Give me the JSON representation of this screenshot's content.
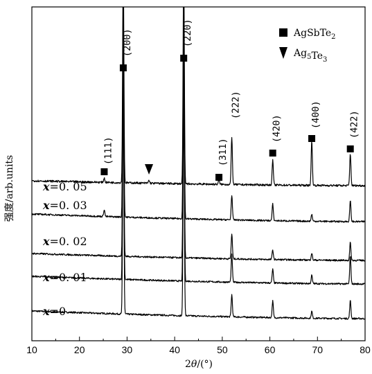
{
  "chart_data": {
    "type": "line",
    "xlabel_prefix": "2",
    "xlabel_theta": "θ",
    "xlabel_suffix": "/(°)",
    "ylabel": "强度/arb.units",
    "xlim": [
      10,
      80
    ],
    "x_ticks": [
      10,
      20,
      30,
      40,
      50,
      60,
      70,
      80
    ],
    "y_ticks_shown": false,
    "legend": {
      "position": "top-right",
      "entries": [
        {
          "marker": "square",
          "base": "AgSbTe",
          "sub": "2",
          "mid": "",
          "sub2": ""
        },
        {
          "marker": "triangle-down",
          "base": "Ag",
          "sub": "5",
          "mid": "Te",
          "sub2": "3"
        }
      ]
    },
    "series": [
      {
        "name": "x=0",
        "var": "x",
        "eq": "=",
        "val": "0",
        "baseline_start": 0.55,
        "baseline_end": 0.0,
        "peaks": [
          [
            29.2,
            16
          ],
          [
            41.9,
            16
          ],
          [
            52.0,
            1.6
          ],
          [
            60.6,
            1.2
          ],
          [
            68.8,
            0.5
          ],
          [
            76.9,
            1.3
          ]
        ]
      },
      {
        "name": "x=0.01",
        "var": "x",
        "eq": "=",
        "val": "0. 01",
        "baseline_start": 0.55,
        "baseline_end": 0.0,
        "peaks": [
          [
            29.2,
            16
          ],
          [
            41.9,
            16
          ],
          [
            52.0,
            2.0
          ],
          [
            60.6,
            1.0
          ],
          [
            68.8,
            0.6
          ],
          [
            76.9,
            2.0
          ]
        ]
      },
      {
        "name": "x=0.02",
        "var": "x",
        "eq": "=",
        "val": "0. 02",
        "baseline_start": 0.5,
        "baseline_end": 0.0,
        "peaks": [
          [
            29.2,
            16
          ],
          [
            41.9,
            16
          ],
          [
            52.0,
            1.8
          ],
          [
            60.6,
            0.7
          ],
          [
            68.8,
            0.5
          ],
          [
            76.9,
            1.3
          ]
        ]
      },
      {
        "name": "x=0.03",
        "var": "x",
        "eq": "=",
        "val": "0. 03",
        "baseline_start": 0.55,
        "baseline_end": 0.0,
        "peaks": [
          [
            25.2,
            0.5
          ],
          [
            29.2,
            16
          ],
          [
            41.9,
            16
          ],
          [
            52.0,
            1.8
          ],
          [
            60.6,
            1.2
          ],
          [
            68.8,
            0.5
          ],
          [
            76.9,
            1.5
          ]
        ]
      },
      {
        "name": "x=0.05",
        "var": "x",
        "eq": "=",
        "val": "0. 05",
        "baseline_start": 0.35,
        "baseline_end": 0.0,
        "peaks": [
          [
            25.2,
            0.3
          ],
          [
            29.2,
            16
          ],
          [
            34.6,
            0.2
          ],
          [
            41.9,
            16
          ],
          [
            49.3,
            0.3
          ],
          [
            52.0,
            3.4
          ],
          [
            60.6,
            1.8
          ],
          [
            68.8,
            3.2
          ],
          [
            76.9,
            2.3
          ]
        ]
      }
    ],
    "peak_annotations": [
      {
        "label": "(111)",
        "x": 25.2,
        "marker": "square"
      },
      {
        "label": "(200)",
        "x": 29.2,
        "marker": "square"
      },
      {
        "label": "",
        "x": 34.6,
        "marker": "triangle-down"
      },
      {
        "label": "(220)",
        "x": 41.9,
        "marker": "square"
      },
      {
        "label": "(311)",
        "x": 49.3,
        "marker": "square"
      },
      {
        "label": "(222)",
        "x": 52.0,
        "marker": "none"
      },
      {
        "label": "(420)",
        "x": 60.6,
        "marker": "square"
      },
      {
        "label": "(400)",
        "x": 68.8,
        "marker": "square"
      },
      {
        "label": "(422)",
        "x": 76.9,
        "marker": "square"
      }
    ]
  }
}
